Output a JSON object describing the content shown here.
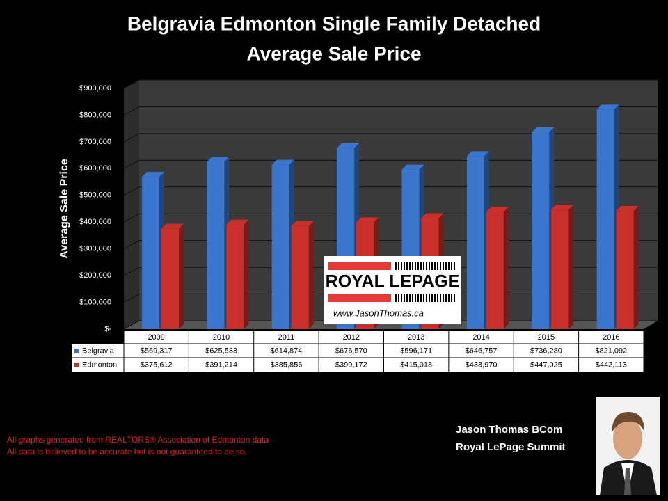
{
  "chart_data": {
    "type": "bar",
    "title": "Belgravia Edmonton Single Family Detached",
    "subtitle": "Average Sale Price",
    "y_label": "Average Sale Price",
    "categories": [
      "2009",
      "2010",
      "2011",
      "2012",
      "2013",
      "2014",
      "2015",
      "2016"
    ],
    "series": [
      {
        "name": "Belgravia",
        "color": "#3a76cc",
        "values": [
          569317,
          625533,
          614874,
          676570,
          596171,
          646757,
          736280,
          821092
        ],
        "value_labels": [
          "$569,317",
          "$625,533",
          "$614,874",
          "$676,570",
          "$596,171",
          "$646,757",
          "$736,280",
          "$821,092"
        ]
      },
      {
        "name": "Edmonton",
        "color": "#c9302c",
        "values": [
          375612,
          391214,
          385856,
          399172,
          415018,
          438970,
          447025,
          442113
        ],
        "value_labels": [
          "$375,612",
          "$391,214",
          "$385,856",
          "$399,172",
          "$415,018",
          "$438,970",
          "$447,025",
          "$442,113"
        ]
      }
    ],
    "ylim": [
      0,
      900000
    ],
    "yticks": [
      {
        "value": 0,
        "label": "$-"
      },
      {
        "value": 100000,
        "label": "$100,000"
      },
      {
        "value": 200000,
        "label": "$200,000"
      },
      {
        "value": 300000,
        "label": "$300,000"
      },
      {
        "value": 400000,
        "label": "$400,000"
      },
      {
        "value": 500000,
        "label": "$500,000"
      },
      {
        "value": 600000,
        "label": "$600,000"
      },
      {
        "value": 700000,
        "label": "$700,000"
      },
      {
        "value": 800000,
        "label": "$800,000"
      },
      {
        "value": 900000,
        "label": "$900,000"
      }
    ],
    "grid": true,
    "data_table": true
  },
  "logo": {
    "brand": "ROYAL LEPAGE",
    "url": "www.JasonThomas.ca"
  },
  "footnotes": [
    "All graphs generated from REALTORS® Association of Edmonton data",
    "All data is believed to be accurate but is not guaranteed to be so."
  ],
  "signature": [
    "Jason Thomas BCom",
    "Royal LePage Summit"
  ]
}
